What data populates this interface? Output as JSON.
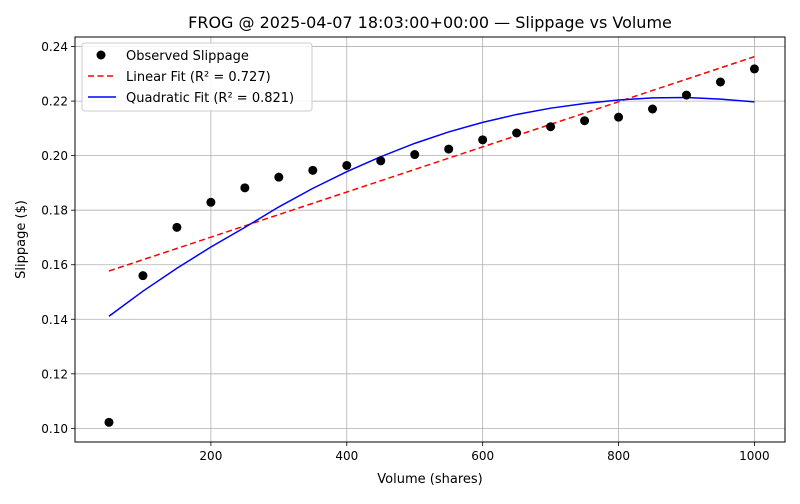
{
  "chart_data": {
    "type": "scatter",
    "title": "FROG @ 2025-04-07 18:03:00+00:00 — Slippage vs Volume",
    "xlabel": "Volume (shares)",
    "ylabel": "Slippage ($)",
    "xlim": [
      0,
      1045
    ],
    "ylim": [
      0.095,
      0.2435
    ],
    "grid": true,
    "legend_position": "top-left",
    "x_ticks": [
      200,
      400,
      600,
      800,
      1000
    ],
    "x_tick_labels": [
      "200",
      "400",
      "600",
      "800",
      "1000"
    ],
    "y_ticks": [
      0.1,
      0.12,
      0.14,
      0.16,
      0.18,
      0.2,
      0.22,
      0.24
    ],
    "y_tick_labels": [
      "0.10",
      "0.12",
      "0.14",
      "0.16",
      "0.18",
      "0.20",
      "0.22",
      "0.24"
    ],
    "series": [
      {
        "name": "Observed Slippage",
        "kind": "scatter",
        "color": "#000000",
        "x": [
          50,
          100,
          150,
          200,
          250,
          300,
          350,
          400,
          450,
          500,
          550,
          600,
          650,
          700,
          750,
          800,
          850,
          900,
          950,
          1000
        ],
        "y": [
          0.1022,
          0.156,
          0.1737,
          0.1829,
          0.1882,
          0.1921,
          0.1946,
          0.1964,
          0.1981,
          0.2004,
          0.2024,
          0.2058,
          0.2083,
          0.2106,
          0.2128,
          0.2141,
          0.2171,
          0.2222,
          0.227,
          0.2318
        ]
      },
      {
        "name": "Linear Fit (R² = 0.727)",
        "kind": "line",
        "style": "dashed",
        "color": "#ff0000",
        "x": [
          50,
          1000
        ],
        "y": [
          0.1577,
          0.2363
        ]
      },
      {
        "name": "Quadratic Fit (R² = 0.821)",
        "kind": "line",
        "style": "solid",
        "color": "#0000ff",
        "x": [
          50,
          100,
          150,
          200,
          250,
          300,
          350,
          400,
          450,
          500,
          550,
          600,
          650,
          700,
          750,
          800,
          850,
          900,
          950,
          1000
        ],
        "y": [
          0.1411,
          0.1503,
          0.1587,
          0.1665,
          0.1737,
          0.1812,
          0.188,
          0.1941,
          0.1996,
          0.2045,
          0.2087,
          0.2122,
          0.2151,
          0.2174,
          0.2191,
          0.2204,
          0.2212,
          0.2213,
          0.2207,
          0.2197
        ]
      }
    ]
  }
}
